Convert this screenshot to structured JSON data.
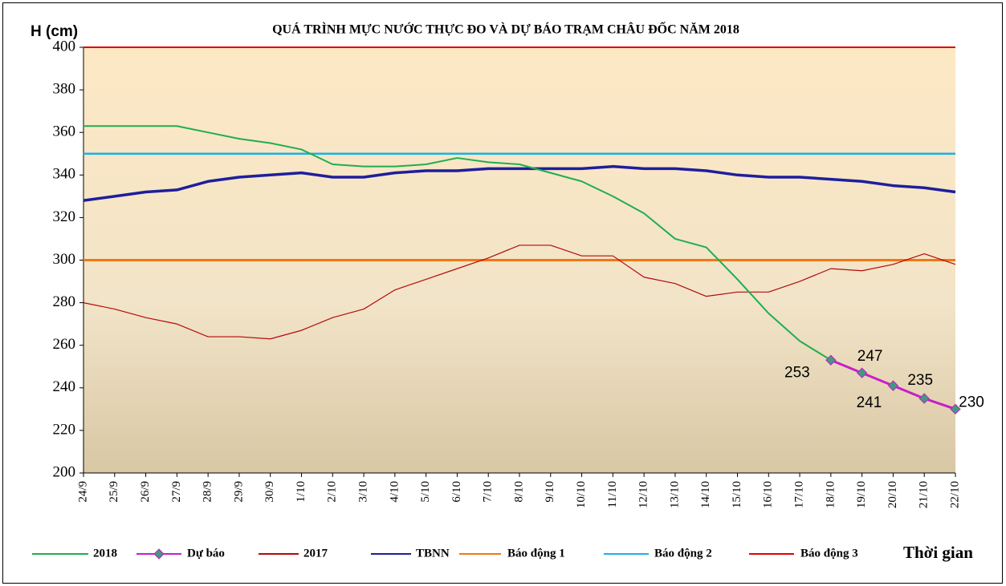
{
  "chart_data": {
    "type": "line",
    "title": "QUÁ TRÌNH MỰC NƯỚC THỰC ĐO VÀ DỰ BÁO TRẠM CHÂU ĐỐC NĂM 2018",
    "y_label": "H (cm)",
    "x_label": "Thời gian",
    "categories": [
      "24/9",
      "25/9",
      "26/9",
      "27/9",
      "28/9",
      "29/9",
      "30/9",
      "1/10",
      "2/10",
      "3/10",
      "4/10",
      "5/10",
      "6/10",
      "7/10",
      "8/10",
      "9/10",
      "10/10",
      "11/10",
      "12/10",
      "13/10",
      "14/10",
      "15/10",
      "16/10",
      "17/10",
      "18/10",
      "19/10",
      "20/10",
      "21/10",
      "22/10"
    ],
    "ylim": [
      200,
      400
    ],
    "yticks": [
      200,
      220,
      240,
      260,
      280,
      300,
      320,
      340,
      360,
      380,
      400
    ],
    "series": [
      {
        "name": "2018",
        "color": "#1fae4f",
        "values": [
          363,
          363,
          363,
          363,
          360,
          357,
          355,
          352,
          345,
          344,
          344,
          345,
          348,
          346,
          345,
          341,
          337,
          330,
          322,
          310,
          306,
          291,
          275,
          262,
          253,
          null,
          null,
          null,
          null
        ]
      },
      {
        "name": "Dự báo",
        "color": "#c81ec8",
        "marker_color": "#3f9a7e",
        "values": [
          null,
          null,
          null,
          null,
          null,
          null,
          null,
          null,
          null,
          null,
          null,
          null,
          null,
          null,
          null,
          null,
          null,
          null,
          null,
          null,
          null,
          null,
          null,
          null,
          253,
          247,
          241,
          235,
          230
        ]
      },
      {
        "name": "2017",
        "color": "#b40a0a",
        "values": [
          280,
          277,
          273,
          270,
          264,
          264,
          263,
          267,
          273,
          277,
          286,
          291,
          296,
          301,
          307,
          307,
          302,
          302,
          292,
          289,
          283,
          285,
          285,
          290,
          296,
          295,
          298,
          303,
          298
        ]
      },
      {
        "name": "TBNN",
        "color": "#1e1e9c",
        "values": [
          328,
          330,
          332,
          333,
          337,
          339,
          340,
          341,
          339,
          339,
          341,
          342,
          342,
          343,
          343,
          343,
          343,
          344,
          343,
          343,
          342,
          340,
          339,
          339,
          338,
          337,
          335,
          334,
          332
        ]
      },
      {
        "name": "Báo động 1",
        "color": "#f07814",
        "values": [
          300,
          300,
          300,
          300,
          300,
          300,
          300,
          300,
          300,
          300,
          300,
          300,
          300,
          300,
          300,
          300,
          300,
          300,
          300,
          300,
          300,
          300,
          300,
          300,
          300,
          300,
          300,
          300,
          300
        ]
      },
      {
        "name": "Báo động 2",
        "color": "#1ab2e6",
        "values": [
          350,
          350,
          350,
          350,
          350,
          350,
          350,
          350,
          350,
          350,
          350,
          350,
          350,
          350,
          350,
          350,
          350,
          350,
          350,
          350,
          350,
          350,
          350,
          350,
          350,
          350,
          350,
          350,
          350
        ]
      },
      {
        "name": "Báo động 3",
        "color": "#e00000",
        "values": [
          400,
          400,
          400,
          400,
          400,
          400,
          400,
          400,
          400,
          400,
          400,
          400,
          400,
          400,
          400,
          400,
          400,
          400,
          400,
          400,
          400,
          400,
          400,
          400,
          400,
          400,
          400,
          400,
          400
        ]
      }
    ]
  }
}
